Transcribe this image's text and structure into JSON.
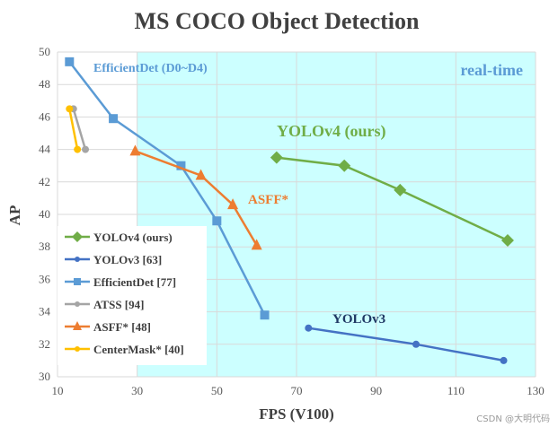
{
  "chart_data": {
    "type": "line",
    "title": "MS COCO Object Detection",
    "xlabel": "FPS (V100)",
    "ylabel": "AP",
    "xlim": [
      10,
      130
    ],
    "ylim": [
      30,
      50
    ],
    "xticks": [
      10,
      30,
      50,
      70,
      90,
      110,
      130
    ],
    "yticks": [
      30,
      32,
      34,
      36,
      38,
      40,
      42,
      44,
      46,
      48,
      50
    ],
    "grid": true,
    "legend_position": "bottom-left",
    "realtime_region": {
      "label": "real-time",
      "x_start": 30,
      "color": "#ccffff"
    },
    "series": [
      {
        "name": "YOLOv4 (ours)",
        "color": "#70ad47",
        "marker": "diamond",
        "x": [
          65,
          82,
          96,
          123
        ],
        "y": [
          43.5,
          43.0,
          41.5,
          38.4
        ]
      },
      {
        "name": "YOLOv3 [63]",
        "color": "#4472c4",
        "marker": "circle",
        "x": [
          73,
          100,
          122
        ],
        "y": [
          33.0,
          32.0,
          31.0
        ]
      },
      {
        "name": "EfficientDet [77]",
        "color": "#5b9bd5",
        "marker": "square",
        "x": [
          13,
          24,
          41,
          50,
          62
        ],
        "y": [
          49.4,
          45.9,
          43.0,
          39.6,
          33.8
        ]
      },
      {
        "name": "ATSS [94]",
        "color": "#a5a5a5",
        "marker": "circle",
        "x": [
          14,
          17
        ],
        "y": [
          46.5,
          44.0
        ]
      },
      {
        "name": "ASFF* [48]",
        "color": "#ed7d31",
        "marker": "triangle",
        "x": [
          29.5,
          46,
          54,
          60
        ],
        "y": [
          43.9,
          42.4,
          40.6,
          38.1
        ]
      },
      {
        "name": "CenterMask* [40]",
        "color": "#ffc000",
        "marker": "circle",
        "x": [
          13,
          15
        ],
        "y": [
          46.5,
          44.0
        ]
      }
    ],
    "annotations": [
      {
        "text": "EfficientDet (D0~D4)",
        "color": "#5b9bd5"
      },
      {
        "text": "YOLOv4 (ours)",
        "color": "#70ad47"
      },
      {
        "text": "ASFF*",
        "color": "#ed7d31"
      },
      {
        "text": "YOLOv3",
        "color": "#1f3864"
      }
    ]
  },
  "watermark": "CSDN @大明代码"
}
